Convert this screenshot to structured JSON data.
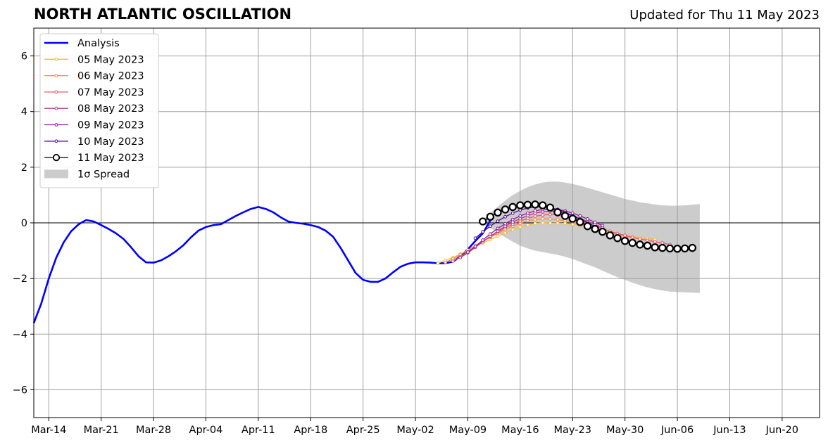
{
  "header": {
    "title": "NORTH ATLANTIC OSCILLATION",
    "subtitle": "Updated for Thu 11 May 2023"
  },
  "chart_data": {
    "type": "line",
    "title": "NORTH ATLANTIC OSCILLATION",
    "subtitle": "Updated for Thu 11 May 2023",
    "xlabel": "",
    "ylabel": "",
    "x_ticks": [
      "Mar-14",
      "Mar-21",
      "Mar-28",
      "Apr-04",
      "Apr-11",
      "Apr-18",
      "Apr-25",
      "May-02",
      "May-09",
      "May-16",
      "May-23",
      "May-30",
      "Jun-06",
      "Jun-13",
      "Jun-20"
    ],
    "y_ticks": [
      "6",
      "4",
      "2",
      "0",
      "−2",
      "−4",
      "−6"
    ],
    "xlim": [
      "2023-03-12",
      "2023-06-25"
    ],
    "ylim": [
      -7,
      7
    ],
    "grid": true,
    "legend_position": "top-left",
    "series": [
      {
        "name": "Analysis",
        "color": "#0000ff",
        "x_start": "2023-03-12",
        "values": [
          -3.6,
          -2.9,
          -2.0,
          -1.25,
          -0.7,
          -0.3,
          -0.05,
          0.1,
          0.05,
          -0.08,
          -0.22,
          -0.38,
          -0.58,
          -0.88,
          -1.2,
          -1.42,
          -1.43,
          -1.35,
          -1.2,
          -1.02,
          -0.8,
          -0.52,
          -0.28,
          -0.15,
          -0.08,
          -0.05,
          0.1,
          0.25,
          0.38,
          0.5,
          0.57,
          0.5,
          0.38,
          0.2,
          0.05,
          0.0,
          -0.03,
          -0.08,
          -0.15,
          -0.28,
          -0.5,
          -0.9,
          -1.35,
          -1.8,
          -2.05,
          -2.12,
          -2.12,
          -2.0,
          -1.78,
          -1.58,
          -1.47,
          -1.42,
          -1.42,
          -1.43,
          -1.45,
          -1.45,
          -1.4,
          -1.2,
          -0.95,
          -0.65,
          -0.38,
          0.08
        ]
      },
      {
        "name": "05 May 2023",
        "color": "#fcb930",
        "x_start": "2023-05-05",
        "values": [
          -1.45,
          -1.35,
          -1.25,
          -1.12,
          -0.98,
          -0.85,
          -0.72,
          -0.6,
          -0.48,
          -0.36,
          -0.25,
          -0.15,
          -0.07,
          -0.02,
          0.0,
          -0.01,
          -0.01,
          -0.02,
          -0.05,
          -0.08,
          -0.12,
          -0.18,
          -0.25,
          -0.33,
          -0.4,
          -0.46,
          -0.5,
          -0.53,
          -0.56,
          -0.6
        ]
      },
      {
        "name": "06 May 2023",
        "color": "#f58a45",
        "x_start": "2023-05-06",
        "values": [
          -1.42,
          -1.3,
          -1.15,
          -0.98,
          -0.82,
          -0.66,
          -0.52,
          -0.38,
          -0.24,
          -0.12,
          -0.02,
          0.08,
          0.12,
          0.15,
          0.14,
          0.12,
          0.08,
          0.02,
          -0.05,
          -0.12,
          -0.2,
          -0.28,
          -0.36,
          -0.42,
          -0.48,
          -0.53,
          -0.58,
          -0.63,
          -0.68,
          -0.73
        ]
      },
      {
        "name": "07 May 2023",
        "color": "#e05a6a",
        "x_start": "2023-05-07",
        "values": [
          -1.38,
          -1.22,
          -1.05,
          -0.86,
          -0.68,
          -0.5,
          -0.33,
          -0.18,
          -0.05,
          0.07,
          0.16,
          0.24,
          0.28,
          0.3,
          0.28,
          0.22,
          0.15,
          0.06,
          -0.03,
          -0.12,
          -0.21,
          -0.3,
          -0.38,
          -0.45,
          -0.52,
          -0.58,
          -0.63,
          -0.68,
          -0.72,
          -0.78
        ]
      },
      {
        "name": "08 May 2023",
        "color": "#b5378a",
        "x_start": "2023-05-08",
        "values": [
          -1.25,
          -1.08,
          -0.88,
          -0.68,
          -0.48,
          -0.3,
          -0.12,
          0.03,
          0.15,
          0.26,
          0.35,
          0.4,
          0.42,
          0.4,
          0.35,
          0.26,
          0.16,
          0.05,
          -0.06,
          -0.17
        ]
      },
      {
        "name": "09 May 2023",
        "color": "#8a1c9c",
        "x_start": "2023-05-09",
        "values": [
          -1.05,
          -0.85,
          -0.62,
          -0.4,
          -0.2,
          -0.03,
          0.12,
          0.25,
          0.35,
          0.43,
          0.48,
          0.5,
          0.48,
          0.43,
          0.35,
          0.25,
          0.14,
          0.02,
          -0.1
        ]
      },
      {
        "name": "10 May 2023",
        "color": "#4b0a8c",
        "x_start": "2023-05-10",
        "values": [
          -0.55,
          -0.32,
          -0.12,
          0.06,
          0.22,
          0.35,
          0.46,
          0.53,
          0.57,
          0.58,
          0.55,
          0.48,
          0.38,
          0.26,
          0.13,
          0.0,
          -0.13
        ]
      },
      {
        "name": "11 May 2023",
        "color": "#000000",
        "x_start": "2023-05-11",
        "values": [
          0.05,
          0.22,
          0.37,
          0.48,
          0.57,
          0.63,
          0.65,
          0.66,
          0.63,
          0.55,
          0.38,
          0.25,
          0.15,
          0.03,
          -0.12,
          -0.22,
          -0.32,
          -0.45,
          -0.55,
          -0.65,
          -0.72,
          -0.78,
          -0.82,
          -0.88,
          -0.9,
          -0.92,
          -0.93,
          -0.92,
          -0.9
        ]
      }
    ],
    "spread": {
      "name": "1σ Spread",
      "color": "#cccccc",
      "x_start": "2023-05-11",
      "upper": [
        0.1,
        0.35,
        0.58,
        0.8,
        1.0,
        1.15,
        1.28,
        1.38,
        1.45,
        1.48,
        1.48,
        1.45,
        1.4,
        1.33,
        1.26,
        1.18,
        1.1,
        1.02,
        0.94,
        0.86,
        0.8,
        0.74,
        0.7,
        0.66,
        0.63,
        0.62,
        0.62,
        0.63,
        0.65,
        0.68
      ],
      "lower": [
        -0.05,
        -0.18,
        -0.35,
        -0.52,
        -0.68,
        -0.82,
        -0.92,
        -1.0,
        -1.05,
        -1.1,
        -1.15,
        -1.22,
        -1.3,
        -1.4,
        -1.5,
        -1.6,
        -1.72,
        -1.84,
        -1.95,
        -2.05,
        -2.15,
        -2.24,
        -2.32,
        -2.38,
        -2.43,
        -2.47,
        -2.49,
        -2.5,
        -2.51,
        -2.52
      ]
    }
  }
}
